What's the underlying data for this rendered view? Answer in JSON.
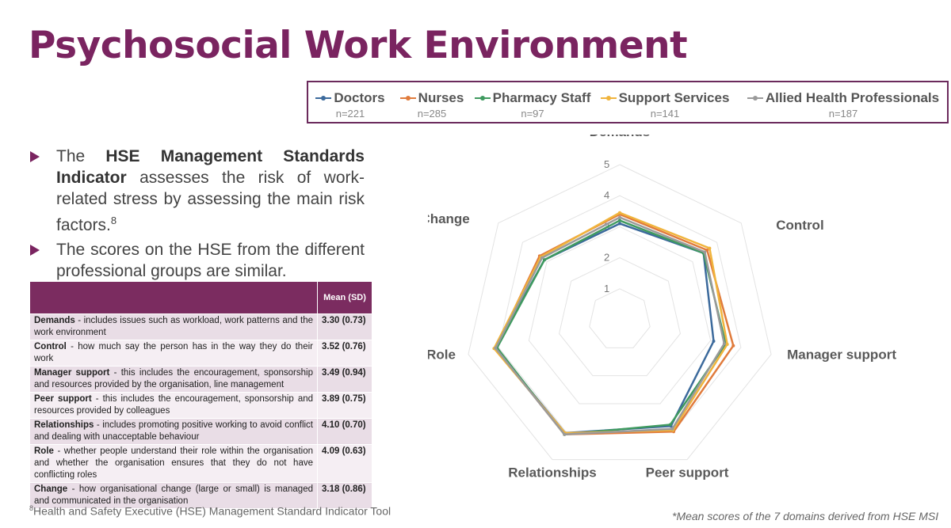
{
  "title": "Psychosocial Work Environment",
  "legend": [
    {
      "name": "Doctors",
      "n": "n=221"
    },
    {
      "name": "Nurses",
      "n": "n=285"
    },
    {
      "name": "Pharmacy Staff",
      "n": "n=97"
    },
    {
      "name": "Support Services",
      "n": "n=141"
    },
    {
      "name": "Allied Health Professionals",
      "n": "n=187"
    }
  ],
  "bullets": [
    {
      "pre": "The ",
      "bold": "HSE Management Standards Indicator",
      "post": " assesses the risk of work-related stress by assessing the main risk factors.",
      "sup": "8"
    },
    {
      "pre": "The scores on the HSE from the different professional groups are similar.",
      "bold": "",
      "post": "",
      "sup": ""
    }
  ],
  "table": {
    "header_mean": "Mean (SD)",
    "rows": [
      {
        "term": "Demands",
        "desc": " - includes issues such as workload, work patterns and the work environment",
        "mean": "3.30 (0.73)"
      },
      {
        "term": "Control",
        "desc": " - how much say the person has in the way they do their work",
        "mean": "3.52 (0.76)"
      },
      {
        "term": "Manager support",
        "desc": " - this includes the encouragement, sponsorship and resources provided by the organisation, line management",
        "mean": "3.49 (0.94)"
      },
      {
        "term": "Peer support",
        "desc": " - this includes the encouragement, sponsorship and resources provided by colleagues",
        "mean": "3.89 (0.75)"
      },
      {
        "term": "Relationships",
        "desc": " - includes promoting positive working to avoid conflict and dealing with unacceptable behaviour",
        "mean": "4.10 (0.70)"
      },
      {
        "term": "Role",
        "desc": " - whether people understand their role within the organisation and whether the organisation ensures that they do not have conflicting roles",
        "mean": "4.09 (0.63)"
      },
      {
        "term": "Change",
        "desc": " - how organisational change (large or small) is managed and communicated in the organisation",
        "mean": "3.18 (0.86)"
      }
    ]
  },
  "footnote": {
    "sup": "8",
    "text": "Health and Safety Executive (HSE) Management Standard Indicator Tool"
  },
  "note": "*Mean scores of the 7 domains derived from HSE MSI",
  "colors": {
    "title": "#7a2460",
    "table_header": "#7b2c60"
  },
  "chart_data": {
    "type": "radar",
    "title": "",
    "categories": [
      "Demands",
      "Control",
      "Manager support",
      "Peer support",
      "Relationships",
      "Role",
      "Change"
    ],
    "ylim": [
      0,
      5
    ],
    "ticks": [
      "1",
      "2",
      "3",
      "4",
      "5"
    ],
    "grid": true,
    "legend_position": "top",
    "series": [
      {
        "name": "Doctors",
        "color": "#3c6a9c",
        "values": [
          3.1,
          3.45,
          3.1,
          3.8,
          4.05,
          4.1,
          3.1
        ]
      },
      {
        "name": "Nurses",
        "color": "#e07b3c",
        "values": [
          3.4,
          3.6,
          3.75,
          4.0,
          4.1,
          4.1,
          3.3
        ]
      },
      {
        "name": "Pharmacy Staff",
        "color": "#3f9a5f",
        "values": [
          3.2,
          3.45,
          3.5,
          3.75,
          4.1,
          4.05,
          3.1
        ]
      },
      {
        "name": "Support Services",
        "color": "#f0b43c",
        "values": [
          3.45,
          3.7,
          3.55,
          3.95,
          4.05,
          4.15,
          3.25
        ]
      },
      {
        "name": "Allied Health Professionals",
        "color": "#9a9a9a",
        "values": [
          3.3,
          3.5,
          3.45,
          3.9,
          4.1,
          4.1,
          3.2
        ]
      }
    ]
  }
}
